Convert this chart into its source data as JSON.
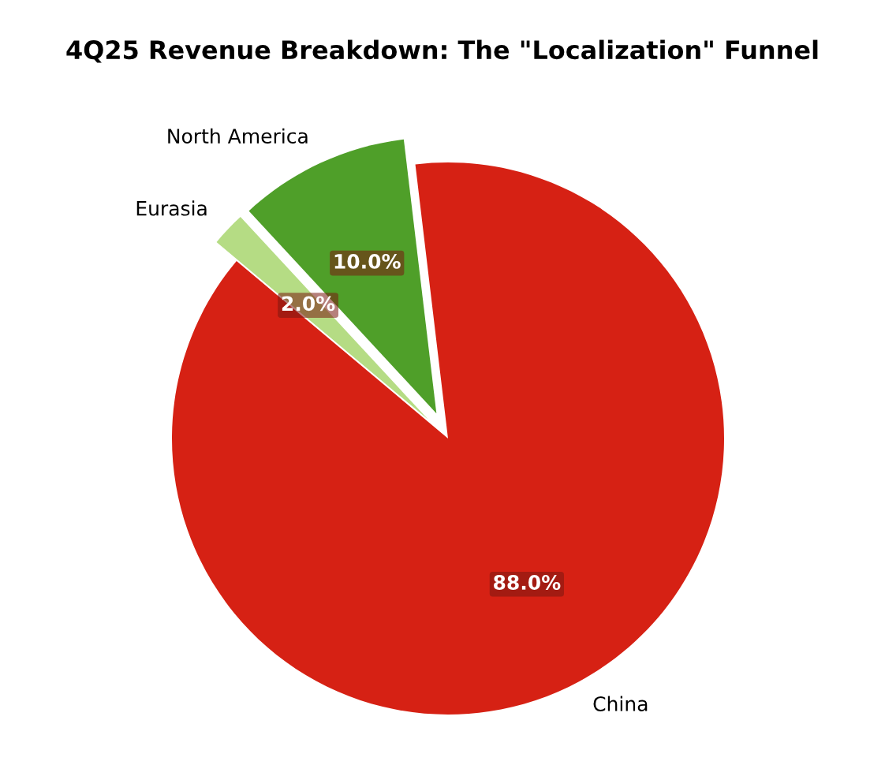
{
  "chart_data": {
    "type": "pie",
    "title": "4Q25 Revenue Breakdown: The \"Localization\" Funnel",
    "categories": [
      "China",
      "North America",
      "Eurasia"
    ],
    "values": [
      88,
      10,
      2
    ],
    "colors": [
      "#d62114",
      "#4f9f29",
      "#b5dc84"
    ],
    "value_labels": [
      "88.0%",
      "10.0%",
      "2.0%"
    ],
    "legend": false
  }
}
